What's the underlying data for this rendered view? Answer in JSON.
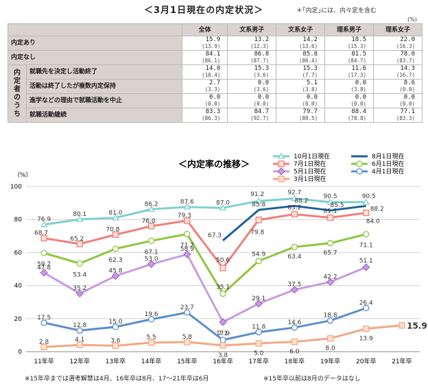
{
  "header": {
    "title": "＜3月1日現在の内定状況＞",
    "note": "＊｢内定｣には、内々定を含む",
    "unit": "(%)"
  },
  "table": {
    "columns": [
      "",
      "全体",
      "文系男子",
      "文系女子",
      "理系男子",
      "理系女子"
    ],
    "group_label": [
      "内",
      "定",
      "者",
      "の",
      "う",
      "ち"
    ],
    "rows": [
      {
        "label": "内定あり",
        "values": [
          "15.9",
          "13.2",
          "14.2",
          "18.5",
          "22.0"
        ],
        "prev": [
          "(13.9)",
          "(12.3)",
          "(13.6)",
          "(15.3)",
          "(16.3)"
        ]
      },
      {
        "label": "内定なし",
        "values": [
          "84.1",
          "86.8",
          "85.8",
          "81.5",
          "78.0"
        ],
        "prev": [
          "(86.1)",
          "(87.7)",
          "(86.4)",
          "(84.7)",
          "(83.7)"
        ]
      },
      {
        "label": "就職先を決定し活動終了",
        "values": [
          "14.0",
          "15.3",
          "15.3",
          "11.6",
          "14.3"
        ],
        "prev": [
          "(10.4)",
          "(3.6)",
          "(7.7)",
          "(17.3)",
          "(16.7)"
        ]
      },
      {
        "label": "活動は終了したが複数内定保持",
        "values": [
          "2.7",
          "0.0",
          "5.1",
          "0.0",
          "8.6"
        ],
        "prev": [
          "(3.3)",
          "(3.6)",
          "(3.8)",
          "(3.8)",
          "(0.0)"
        ]
      },
      {
        "label": "進学などの理由で就職活動を中止",
        "values": [
          "0.0",
          "0.0",
          "0.0",
          "0.0",
          "0.0"
        ],
        "prev": [
          "(0.0)",
          "(0.0)",
          "(0.0)",
          "(0.0)",
          "(0.0)"
        ]
      },
      {
        "label": "就職活動継続",
        "values": [
          "83.3",
          "84.7",
          "79.7",
          "88.4",
          "77.1"
        ],
        "prev": [
          "(86.3)",
          "(92.7)",
          "(88.5)",
          "(78.8)",
          "(83.3)"
        ]
      }
    ]
  },
  "chart_data": {
    "type": "line",
    "title": "＜内定率の推移＞",
    "ylabel": "（%）",
    "ylim": [
      0,
      100
    ],
    "yticks": [
      "0",
      "20",
      "40",
      "60",
      "80",
      "100"
    ],
    "categories": [
      "11年卒",
      "12年卒",
      "13年卒",
      "14年卒",
      "15年卒",
      "16年卒",
      "17年卒",
      "18年卒",
      "19年卒",
      "20年卒",
      "21年卒"
    ],
    "grid": true,
    "legend_position": "top-right",
    "series": [
      {
        "name": "10月1日現在",
        "color": "#7fcfcf",
        "marker": "triangle",
        "values": [
          76.9,
          80.1,
          81.0,
          86.2,
          87.6,
          87.0,
          91.2,
          92.7,
          90.5,
          90.5,
          null
        ],
        "labels": [
          "76.9",
          "80.1",
          "81.0",
          "86.2",
          "87.6",
          "87.0",
          "91.2",
          "92.7",
          "90.5",
          "90.5",
          ""
        ]
      },
      {
        "name": "8月1日現在",
        "color": "#1f5f99",
        "marker": "none",
        "values": [
          null,
          null,
          null,
          null,
          null,
          67.3,
          85.8,
          88.2,
          85.5,
          88.2,
          null
        ],
        "labels": [
          "",
          "",
          "",
          "",
          "",
          "67.3",
          "85.8",
          "88.2",
          "85.5",
          "88.2",
          ""
        ]
      },
      {
        "name": "7月1日現在",
        "color": "#f07e7a",
        "marker": "square",
        "values": [
          68.7,
          65.2,
          70.8,
          76.0,
          79.3,
          50.6,
          79.8,
          83.2,
          81.1,
          84.0,
          null
        ],
        "labels": [
          "68.7",
          "65.2",
          "70.8",
          "76.0",
          "79.3",
          "50.6",
          "79.8",
          "83.2",
          "81.1",
          "84.0",
          ""
        ]
      },
      {
        "name": "6月1日現在",
        "color": "#8cc63e",
        "marker": "circle",
        "values": [
          59.7,
          53.4,
          62.3,
          67.1,
          71.2,
          35.1,
          54.9,
          63.4,
          65.7,
          71.1,
          null
        ],
        "labels": [
          "59.7",
          "53.4",
          "62.3",
          "67.1",
          "71.2",
          "35.1",
          "54.9",
          "63.4",
          "65.7",
          "71.1",
          ""
        ]
      },
      {
        "name": "5月1日現在",
        "color": "#c89be0",
        "marker": "diamond",
        "values": [
          47.8,
          35.2,
          45.8,
          53.0,
          58.9,
          17.9,
          29.1,
          37.5,
          42.2,
          51.1,
          null
        ],
        "labels": [
          "47.8",
          "35.2",
          "45.8",
          "53.0",
          "58.9",
          "17.9",
          "29.1",
          "37.5",
          "42.2",
          "51.1",
          ""
        ]
      },
      {
        "name": "4月1日現在",
        "color": "#5b8ec9",
        "marker": "circle",
        "values": [
          17.5,
          12.8,
          15.0,
          19.6,
          23.7,
          7.1,
          11.8,
          14.6,
          18.8,
          26.4,
          null
        ],
        "labels": [
          "17.5",
          "12.8",
          "15.0",
          "19.6",
          "23.7",
          "7.1",
          "11.8",
          "14.6",
          "18.8",
          "26.4",
          ""
        ]
      },
      {
        "name": "3月1日現在",
        "color": "#f4a882",
        "marker": "square",
        "values": [
          2.8,
          4.1,
          3.6,
          5.5,
          5.8,
          3.8,
          5.0,
          6.0,
          8.0,
          13.9,
          15.9
        ],
        "labels": [
          "2.8",
          "4.1",
          "3.6",
          "5.5",
          "5.8",
          "3.8",
          "5.0",
          "6.0",
          "8.0",
          "13.9",
          "15.9"
        ]
      }
    ]
  },
  "footnotes": {
    "left": "※15年卒までは選考解禁は4月、16年卒は8月、17～21年卒は6月",
    "right": "※15年卒以前は8月のデータはなし"
  }
}
